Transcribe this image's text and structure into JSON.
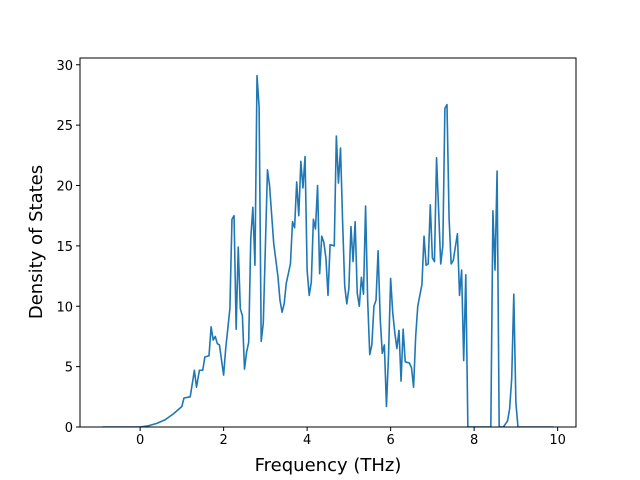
{
  "chart_data": {
    "type": "line",
    "xlabel": "Frequency (THz)",
    "ylabel": "Density of States",
    "color": "#1f77b4",
    "xlim": [
      -1.44,
      10.44
    ],
    "ylim": [
      0,
      30.56
    ],
    "xticks": [
      0,
      2,
      4,
      6,
      8,
      10
    ],
    "yticks": [
      0,
      5,
      10,
      15,
      20,
      25,
      30
    ],
    "x": [
      -0.9,
      0.0,
      0.2,
      0.4,
      0.6,
      0.8,
      1.0,
      1.05,
      1.2,
      1.3,
      1.35,
      1.42,
      1.5,
      1.55,
      1.65,
      1.7,
      1.75,
      1.8,
      1.85,
      1.9,
      2.0,
      2.05,
      2.15,
      2.2,
      2.25,
      2.3,
      2.35,
      2.4,
      2.45,
      2.5,
      2.55,
      2.6,
      2.65,
      2.7,
      2.75,
      2.8,
      2.85,
      2.9,
      2.95,
      3.05,
      3.1,
      3.2,
      3.3,
      3.35,
      3.4,
      3.45,
      3.5,
      3.6,
      3.65,
      3.7,
      3.75,
      3.8,
      3.85,
      3.9,
      3.95,
      4.0,
      4.05,
      4.1,
      4.15,
      4.2,
      4.25,
      4.3,
      4.35,
      4.4,
      4.45,
      4.5,
      4.55,
      4.65,
      4.7,
      4.75,
      4.8,
      4.85,
      4.9,
      4.95,
      5.0,
      5.05,
      5.1,
      5.15,
      5.2,
      5.25,
      5.3,
      5.35,
      5.4,
      5.45,
      5.5,
      5.55,
      5.6,
      5.65,
      5.7,
      5.75,
      5.8,
      5.85,
      5.9,
      5.95,
      6.0,
      6.05,
      6.1,
      6.15,
      6.2,
      6.25,
      6.3,
      6.35,
      6.45,
      6.5,
      6.55,
      6.6,
      6.65,
      6.75,
      6.8,
      6.85,
      6.9,
      6.95,
      7.0,
      7.05,
      7.1,
      7.15,
      7.2,
      7.25,
      7.3,
      7.35,
      7.4,
      7.45,
      7.5,
      7.6,
      7.65,
      7.7,
      7.75,
      7.8,
      7.85,
      8.2,
      8.4,
      8.45,
      8.5,
      8.55,
      8.6,
      8.7,
      8.8,
      8.85,
      8.9,
      8.95,
      9.0,
      9.05,
      9.9
    ],
    "values": [
      0,
      0,
      0.1,
      0.3,
      0.6,
      1.1,
      1.7,
      2.4,
      2.5,
      4.7,
      3.3,
      4.7,
      4.7,
      5.8,
      5.9,
      8.3,
      7.2,
      7.5,
      6.9,
      6.8,
      4.3,
      6.5,
      9.8,
      17.2,
      17.5,
      8.1,
      14.9,
      9.8,
      9.2,
      4.8,
      6.2,
      7.0,
      15.6,
      18.2,
      13.4,
      29.1,
      26.5,
      7.1,
      8.6,
      21.3,
      20.0,
      15.2,
      12.5,
      10.5,
      9.5,
      10.2,
      11.9,
      13.5,
      17.0,
      16.5,
      20.3,
      17.5,
      22.0,
      19.8,
      22.4,
      13.0,
      10.9,
      12.0,
      17.2,
      16.4,
      20.0,
      12.7,
      15.8,
      15.3,
      14.0,
      10.9,
      15.1,
      15.0,
      24.1,
      20.2,
      23.1,
      17.0,
      11.7,
      10.2,
      11.5,
      16.6,
      13.7,
      17.0,
      11.1,
      10.0,
      12.4,
      11.0,
      18.3,
      10.5,
      6.0,
      6.8,
      10.0,
      10.5,
      14.6,
      9.0,
      6.1,
      6.8,
      1.7,
      6.0,
      12.3,
      9.5,
      7.8,
      6.5,
      8.0,
      3.8,
      8.1,
      5.4,
      5.3,
      4.9,
      3.3,
      7.5,
      10.0,
      11.8,
      15.8,
      13.4,
      13.5,
      18.4,
      14.0,
      13.7,
      22.3,
      17.9,
      13.5,
      15.0,
      26.4,
      26.7,
      17.3,
      13.5,
      13.8,
      16.0,
      10.9,
      13.0,
      5.5,
      12.6,
      0,
      0,
      0,
      17.9,
      13.0,
      21.2,
      0,
      0,
      0.5,
      1.5,
      4.0,
      11.0,
      2.0,
      0,
      0
    ]
  }
}
